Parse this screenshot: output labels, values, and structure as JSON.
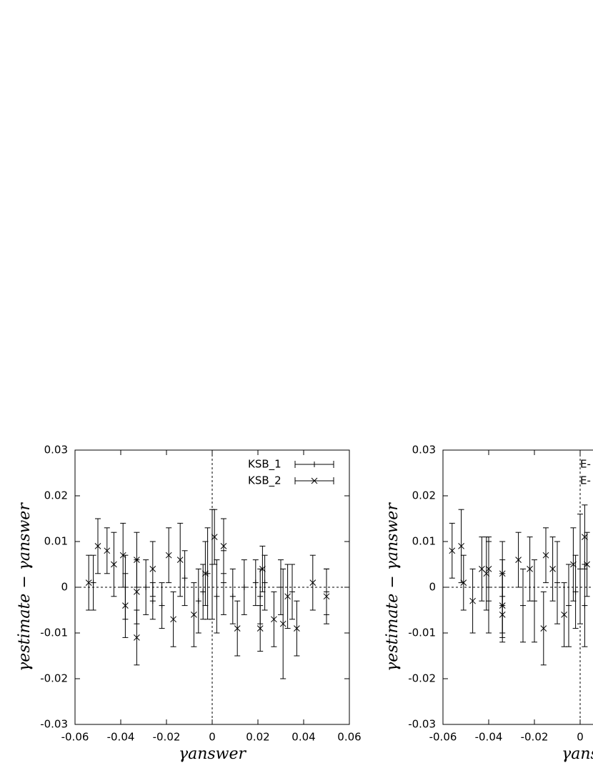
{
  "chart_data": [
    {
      "type": "scatter",
      "xlabel": "γanswer",
      "ylabel": "γestimate − γanswer",
      "xlim": [
        -0.06,
        0.06
      ],
      "ylim": [
        -0.03,
        0.03
      ],
      "xticks": [
        -0.06,
        -0.04,
        -0.02,
        0,
        0.02,
        0.04,
        0.06
      ],
      "yticks": [
        -0.03,
        -0.02,
        -0.01,
        0,
        0.01,
        0.02,
        0.03
      ],
      "zero_lines": true,
      "series": [
        {
          "name": "KSB_1",
          "marker": "plus",
          "color": "#000000",
          "x": [
            -0.052,
            -0.038,
            -0.029,
            -0.026,
            -0.022,
            -0.012,
            -0.006,
            -0.004,
            -0.002,
            0,
            0.002,
            0.005,
            0.009,
            0.014,
            0.019,
            0.021,
            0.023,
            0.03,
            0.035,
            0.05
          ],
          "values": [
            0.001,
            0.0,
            0.0,
            -0.003,
            -0.004,
            0.002,
            -0.003,
            -0.001,
            0.003,
            0.005,
            -0.002,
            0.001,
            -0.002,
            0.0,
            0.001,
            -0.002,
            0.001,
            0.0,
            -0.001,
            -0.001
          ],
          "errors": [
            0.006,
            0.007,
            0.006,
            0.004,
            0.005,
            0.006,
            0.007,
            0.006,
            0.01,
            0.012,
            0.008,
            0.007,
            0.006,
            0.006,
            0.005,
            0.006,
            0.006,
            0.006,
            0.006,
            0.005
          ]
        },
        {
          "name": "KSB_2",
          "marker": "cross",
          "color": "#000000",
          "x": [
            -0.054,
            -0.05,
            -0.046,
            -0.043,
            -0.039,
            -0.038,
            -0.033,
            -0.033,
            -0.033,
            -0.026,
            -0.019,
            -0.017,
            -0.014,
            -0.008,
            -0.003,
            0.001,
            0.005,
            0.011,
            0.021,
            0.022,
            0.027,
            0.031,
            0.033,
            0.037,
            0.044,
            0.05
          ],
          "values": [
            0.001,
            0.009,
            0.008,
            0.005,
            0.007,
            -0.004,
            0.006,
            -0.011,
            -0.001,
            0.004,
            0.007,
            -0.007,
            0.006,
            -0.006,
            0.003,
            0.011,
            0.009,
            -0.009,
            -0.009,
            0.004,
            -0.007,
            -0.008,
            -0.002,
            -0.009,
            0.001,
            -0.002
          ],
          "errors": [
            0.006,
            0.006,
            0.005,
            0.007,
            0.007,
            0.007,
            0.006,
            0.006,
            0.007,
            0.006,
            0.006,
            0.006,
            0.008,
            0.007,
            0.007,
            0.006,
            0.006,
            0.006,
            0.005,
            0.005,
            0.006,
            0.012,
            0.007,
            0.006,
            0.006,
            0.006
          ]
        }
      ]
    },
    {
      "type": "scatter",
      "xlabel": "γans",
      "ylabel": "γestimate − γanswer",
      "xlim": [
        -0.06,
        0.06
      ],
      "ylim": [
        -0.03,
        0.03
      ],
      "xticks": [
        -0.06,
        -0.04,
        -0.02,
        0
      ],
      "yticks": [
        -0.03,
        -0.02,
        -0.01,
        0,
        0.01,
        0.02,
        0.03
      ],
      "zero_lines": true,
      "series": [
        {
          "name": "E-",
          "marker": "plus",
          "color": "#000000",
          "x": [
            -0.04,
            -0.034,
            -0.025,
            -0.02,
            -0.01,
            -0.005,
            -0.002,
            0,
            0.002
          ],
          "values": [
            0.0,
            -0.002,
            -0.004,
            -0.003,
            0.001,
            -0.004,
            -0.001,
            0.004,
            -0.004
          ],
          "errors": [
            0.01,
            0.008,
            0.008,
            0.009,
            0.009,
            0.009,
            0.008,
            0.012,
            0.009
          ]
        },
        {
          "name": "E-",
          "marker": "cross",
          "color": "#000000",
          "x": [
            -0.056,
            -0.052,
            -0.051,
            -0.047,
            -0.043,
            -0.041,
            -0.04,
            -0.034,
            -0.034,
            -0.034,
            -0.027,
            -0.022,
            -0.016,
            -0.015,
            -0.012,
            -0.007,
            -0.003,
            0.002,
            0.003
          ],
          "values": [
            0.008,
            0.009,
            0.001,
            -0.003,
            0.004,
            0.003,
            0.004,
            0.003,
            -0.004,
            -0.006,
            0.006,
            0.004,
            -0.009,
            0.007,
            0.004,
            -0.006,
            0.005,
            0.011,
            0.005
          ],
          "errors": [
            0.006,
            0.008,
            0.006,
            0.007,
            0.007,
            0.008,
            0.007,
            0.007,
            0.007,
            0.006,
            0.006,
            0.007,
            0.008,
            0.006,
            0.007,
            0.007,
            0.008,
            0.007,
            0.007
          ]
        }
      ]
    }
  ]
}
